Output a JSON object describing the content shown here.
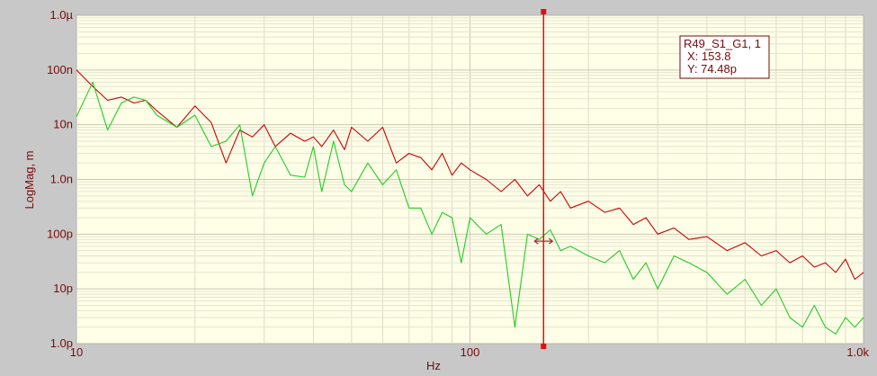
{
  "chart_data": {
    "type": "line",
    "title": "",
    "xlabel": "Hz",
    "ylabel": "LogMag, m",
    "x_scale": "log",
    "y_scale": "log",
    "xlim": [
      10,
      1000
    ],
    "ylim": [
      1e-12,
      1e-06
    ],
    "grid": true,
    "x_ticks": [
      {
        "value": 10,
        "label": "10"
      },
      {
        "value": 100,
        "label": "100"
      },
      {
        "value": 1000,
        "label": "1.0k"
      }
    ],
    "y_ticks": [
      {
        "value": 1e-06,
        "label": "1.0µ"
      },
      {
        "value": 1e-07,
        "label": "100n"
      },
      {
        "value": 1e-08,
        "label": "10n"
      },
      {
        "value": 1e-09,
        "label": "1.0n"
      },
      {
        "value": 1e-10,
        "label": "100p"
      },
      {
        "value": 1e-11,
        "label": "10p"
      },
      {
        "value": 1e-12,
        "label": "1.0p"
      }
    ],
    "series": [
      {
        "color": "#cc0000",
        "x": [
          10,
          11,
          12,
          13,
          14,
          15,
          16,
          18,
          20,
          22,
          24,
          26,
          28,
          30,
          32,
          35,
          38,
          40,
          42,
          45,
          48,
          50,
          55,
          60,
          65,
          70,
          75,
          80,
          85,
          90,
          95,
          100,
          110,
          120,
          130,
          140,
          150,
          160,
          170,
          180,
          200,
          220,
          240,
          260,
          280,
          300,
          330,
          360,
          400,
          450,
          500,
          550,
          600,
          650,
          700,
          750,
          800,
          850,
          900,
          950,
          1000
        ],
        "y": [
          1e-07,
          5e-08,
          2.8e-08,
          3.2e-08,
          2.5e-08,
          2.8e-08,
          1.8e-08,
          9e-09,
          2.2e-08,
          1.1e-08,
          2e-09,
          8e-09,
          6e-09,
          1e-08,
          4e-09,
          7e-09,
          5e-09,
          6e-09,
          4e-09,
          8e-09,
          3.5e-09,
          9e-09,
          5e-09,
          9e-09,
          2e-09,
          3e-09,
          2.5e-09,
          1.5e-09,
          3e-09,
          1.2e-09,
          2e-09,
          1.5e-09,
          1e-09,
          6e-10,
          1e-09,
          5e-10,
          8e-10,
          4e-10,
          6e-10,
          3e-10,
          4e-10,
          2.5e-10,
          3e-10,
          1.5e-10,
          2e-10,
          1e-10,
          1.3e-10,
          8e-11,
          9e-11,
          5e-11,
          7e-11,
          4e-11,
          5e-11,
          3e-11,
          4e-11,
          2.5e-11,
          3e-11,
          2e-11,
          3.5e-11,
          1.5e-11,
          2e-11
        ]
      },
      {
        "color": "#22cc22",
        "x": [
          10,
          11,
          12,
          13,
          14,
          15,
          16,
          18,
          20,
          22,
          24,
          26,
          28,
          30,
          32,
          35,
          38,
          40,
          42,
          45,
          48,
          50,
          55,
          60,
          65,
          70,
          75,
          80,
          85,
          90,
          95,
          100,
          110,
          120,
          130,
          140,
          150,
          160,
          170,
          180,
          200,
          220,
          240,
          260,
          280,
          300,
          330,
          360,
          400,
          450,
          500,
          550,
          600,
          650,
          700,
          750,
          800,
          850,
          900,
          950,
          1000
        ],
        "y": [
          1.4e-08,
          6e-08,
          8e-09,
          2.5e-08,
          3.2e-08,
          2.8e-08,
          1.5e-08,
          9e-09,
          1.5e-08,
          4e-09,
          5e-09,
          1e-08,
          5e-10,
          2e-09,
          4e-09,
          1.2e-09,
          1.1e-09,
          4e-09,
          6e-10,
          5e-09,
          8e-10,
          6e-10,
          2e-09,
          8e-10,
          1.5e-09,
          3e-10,
          3e-10,
          1e-10,
          2.5e-10,
          2e-10,
          3e-11,
          2e-10,
          1e-10,
          1.5e-10,
          2e-12,
          1e-10,
          8e-11,
          1.2e-10,
          5e-11,
          6e-11,
          4e-11,
          3e-11,
          5e-11,
          1.5e-11,
          3e-11,
          1e-11,
          4e-11,
          3e-11,
          2e-11,
          8e-12,
          1.5e-11,
          5e-12,
          1e-11,
          3e-12,
          2e-12,
          5e-12,
          2e-12,
          1.5e-12,
          3e-12,
          2e-12,
          3e-12
        ]
      }
    ],
    "cursor": {
      "x": 153.8,
      "trace_label": "R49_S1_G1, 1",
      "x_readout": "X: 153.8",
      "y_readout": "Y: 74.48p",
      "marker_y": 7.448e-11
    }
  }
}
